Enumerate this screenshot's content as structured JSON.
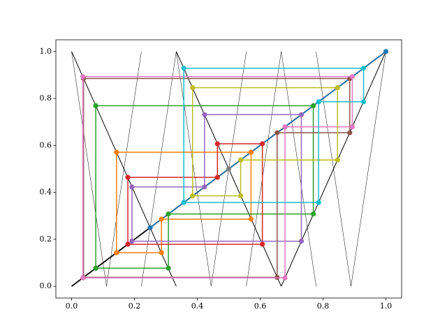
{
  "chart_data": {
    "type": "line",
    "xlim": [
      -0.05,
      1.05
    ],
    "ylim": [
      -0.05,
      1.05
    ],
    "xticks": [
      {
        "value": 0,
        "label": "0.0"
      },
      {
        "value": 0.2,
        "label": "0.2"
      },
      {
        "value": 0.4,
        "label": "0.4"
      },
      {
        "value": 0.6,
        "label": "0.6"
      },
      {
        "value": 0.8,
        "label": "0.8"
      },
      {
        "value": 1,
        "label": "1.0"
      }
    ],
    "yticks": [
      {
        "value": 0,
        "label": "0.0"
      },
      {
        "value": 0.2,
        "label": "0.2"
      },
      {
        "value": 0.4,
        "label": "0.4"
      },
      {
        "value": 0.6,
        "label": "0.6"
      },
      {
        "value": 0.8,
        "label": "0.8"
      },
      {
        "value": 1,
        "label": "1.0"
      }
    ],
    "grid": false,
    "series": [
      {
        "color": "#000000",
        "width": 0.5,
        "marker": false,
        "x": [
          0,
          0.111,
          0.222,
          null,
          0.222,
          0.333,
          null,
          0.333,
          0.444,
          0.556,
          null,
          0.556,
          0.667,
          null,
          0.667,
          0.778,
          null,
          0.778,
          0.889,
          1
        ],
        "y": [
          1,
          0,
          1,
          null,
          0,
          1,
          null,
          1,
          0,
          1,
          null,
          0,
          1,
          null,
          1,
          0,
          null,
          1,
          0,
          1
        ]
      },
      {
        "color": "#000000",
        "width": 1,
        "marker": false,
        "x": [
          0,
          0.333,
          null,
          0.333,
          0.667,
          null,
          0.667,
          1
        ],
        "y": [
          1,
          0,
          null,
          1,
          0,
          null,
          0,
          1
        ]
      },
      {
        "color": "#000000",
        "width": 1.8,
        "marker": false,
        "x": [
          0,
          1
        ],
        "y": [
          0,
          1
        ]
      },
      {
        "color": "#1f77b4",
        "width": 1.5,
        "marker": true,
        "x": [
          0.25,
          1
        ],
        "y": [
          0.25,
          1
        ]
      },
      {
        "color": "#ff7f0e",
        "width": 1.5,
        "marker": true,
        "x": [
          0.143,
          0.143,
          0.571,
          0.571,
          0.286,
          0.286,
          0.143
        ],
        "y": [
          0.143,
          0.571,
          0.571,
          0.286,
          0.286,
          0.143,
          0.143
        ]
      },
      {
        "color": "#2ca02c",
        "width": 1.5,
        "marker": true,
        "x": [
          0.077,
          0.077,
          0.769,
          0.769,
          0.308,
          0.308,
          0.077
        ],
        "y": [
          0.077,
          0.769,
          0.769,
          0.308,
          0.308,
          0.077,
          0.077
        ]
      },
      {
        "color": "#d62728",
        "width": 1.5,
        "marker": true,
        "x": [
          0.179,
          0.179,
          0.464,
          0.464,
          0.607,
          0.607,
          0.179
        ],
        "y": [
          0.179,
          0.464,
          0.464,
          0.607,
          0.607,
          0.179,
          0.179
        ]
      },
      {
        "color": "#9467bd",
        "width": 1.5,
        "marker": true,
        "x": [
          0.192,
          0.192,
          0.423,
          0.423,
          0.731,
          0.731,
          0.192
        ],
        "y": [
          0.192,
          0.423,
          0.423,
          0.731,
          0.731,
          0.192,
          0.192
        ]
      },
      {
        "color": "#8c564b",
        "width": 1.5,
        "marker": true,
        "x": [
          0.038,
          0.038,
          0.885,
          0.885,
          0.654,
          0.654,
          0.038
        ],
        "y": [
          0.038,
          0.885,
          0.885,
          0.654,
          0.654,
          0.038,
          0.038
        ]
      },
      {
        "color": "#e377c2",
        "width": 1.5,
        "marker": true,
        "x": [
          0.036,
          0.036,
          0.893,
          0.893,
          0.679,
          0.679,
          0.036
        ],
        "y": [
          0.036,
          0.893,
          0.893,
          0.679,
          0.679,
          0.036,
          0.036
        ]
      },
      {
        "color": "#7f7f7f",
        "width": 1.5,
        "marker": true,
        "x": [
          0.5
        ],
        "y": [
          0.5
        ]
      },
      {
        "color": "#bcbd22",
        "width": 1.5,
        "marker": true,
        "x": [
          0.385,
          0.385,
          0.846,
          0.846,
          0.538,
          0.538,
          0.385
        ],
        "y": [
          0.385,
          0.846,
          0.846,
          0.538,
          0.538,
          0.385,
          0.385
        ]
      },
      {
        "color": "#17becf",
        "width": 1.5,
        "marker": true,
        "x": [
          0.357,
          0.357,
          0.929,
          0.929,
          0.786,
          0.786,
          0.357
        ],
        "y": [
          0.357,
          0.929,
          0.929,
          0.786,
          0.786,
          0.357,
          0.357
        ]
      }
    ]
  }
}
